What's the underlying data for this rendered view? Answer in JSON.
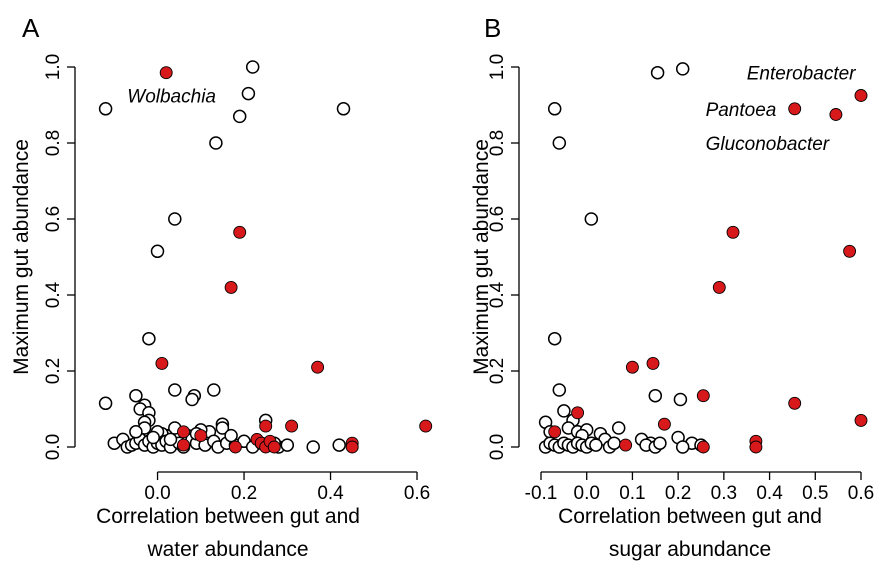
{
  "colors": {
    "highlight": "#d7191c",
    "open": "#ffffff",
    "stroke": "#000000"
  },
  "chart_data": [
    {
      "type": "scatter",
      "panel_label": "A",
      "xlabel": [
        "Correlation between gut and",
        "water abundance"
      ],
      "ylabel": "Maximum gut abundance",
      "xlim": [
        -0.14,
        0.63
      ],
      "ylim": [
        0,
        1.0
      ],
      "xticks": [
        0.0,
        0.2,
        0.4,
        0.6
      ],
      "xtick_labels": [
        "0.0",
        "0.2",
        "0.4",
        "0.6"
      ],
      "yticks": [
        0.0,
        0.2,
        0.4,
        0.6,
        0.8,
        1.0
      ],
      "ytick_labels": [
        "0.0",
        "0.2",
        "0.4",
        "0.6",
        "0.8",
        "1.0"
      ],
      "grid": false,
      "annotations": [
        {
          "text": "Wolbachia",
          "x": -0.07,
          "y": 0.925
        }
      ],
      "series": [
        {
          "style": "open",
          "points": [
            [
              -0.12,
              0.89
            ],
            [
              0.22,
              1.0
            ],
            [
              0.21,
              0.93
            ],
            [
              0.19,
              0.87
            ],
            [
              0.135,
              0.8
            ],
            [
              0.43,
              0.89
            ],
            [
              0.04,
              0.6
            ],
            [
              0.0,
              0.515
            ],
            [
              -0.02,
              0.285
            ],
            [
              0.04,
              0.15
            ],
            [
              -0.12,
              0.115
            ],
            [
              -0.05,
              0.135
            ],
            [
              -0.03,
              0.11
            ],
            [
              -0.04,
              0.1
            ],
            [
              -0.02,
              0.09
            ],
            [
              -0.02,
              0.07
            ],
            [
              -0.03,
              0.065
            ],
            [
              -0.03,
              0.05
            ],
            [
              0.13,
              0.15
            ],
            [
              0.085,
              0.135
            ],
            [
              0.08,
              0.125
            ],
            [
              0.15,
              0.06
            ],
            [
              0.15,
              0.05
            ],
            [
              0.25,
              0.07
            ],
            [
              0.12,
              0.04
            ],
            [
              0.1,
              0.045
            ],
            [
              0.07,
              0.03
            ],
            [
              0.04,
              0.05
            ],
            [
              0.02,
              0.03
            ],
            [
              0.01,
              0.035
            ],
            [
              -0.1,
              0.01
            ],
            [
              -0.08,
              0.02
            ],
            [
              -0.07,
              0.0
            ],
            [
              -0.06,
              0.005
            ],
            [
              -0.05,
              0.01
            ],
            [
              -0.04,
              0.02
            ],
            [
              -0.03,
              0.005
            ],
            [
              -0.02,
              0.015
            ],
            [
              -0.01,
              0.0
            ],
            [
              0.0,
              0.01
            ],
            [
              0.01,
              0.005
            ],
            [
              0.02,
              0.015
            ],
            [
              0.03,
              0.0
            ],
            [
              0.05,
              0.01
            ],
            [
              0.06,
              0.0
            ],
            [
              0.08,
              0.02
            ],
            [
              0.09,
              0.01
            ],
            [
              0.11,
              0.005
            ],
            [
              0.13,
              0.015
            ],
            [
              0.14,
              0.0
            ],
            [
              0.16,
              0.01
            ],
            [
              0.18,
              0.005
            ],
            [
              0.2,
              0.015
            ],
            [
              0.22,
              0.0
            ],
            [
              0.24,
              0.01
            ],
            [
              0.26,
              0.005
            ],
            [
              0.28,
              0.0
            ],
            [
              0.3,
              0.005
            ],
            [
              0.36,
              0.0
            ],
            [
              0.42,
              0.005
            ],
            [
              -0.05,
              0.04
            ],
            [
              0.0,
              0.04
            ],
            [
              -0.01,
              0.025
            ],
            [
              0.03,
              0.02
            ],
            [
              0.09,
              0.035
            ],
            [
              0.17,
              0.03
            ],
            [
              0.27,
              0.01
            ]
          ]
        },
        {
          "style": "filled",
          "points": [
            [
              0.02,
              0.985
            ],
            [
              0.19,
              0.565
            ],
            [
              0.17,
              0.42
            ],
            [
              0.01,
              0.22
            ],
            [
              0.37,
              0.21
            ],
            [
              0.62,
              0.055
            ],
            [
              0.31,
              0.055
            ],
            [
              0.25,
              0.055
            ],
            [
              0.06,
              0.04
            ],
            [
              0.1,
              0.03
            ],
            [
              0.45,
              0.01
            ],
            [
              0.45,
              0.0
            ],
            [
              0.23,
              0.02
            ],
            [
              0.24,
              0.01
            ],
            [
              0.25,
              0.0
            ],
            [
              0.26,
              0.015
            ],
            [
              0.27,
              0.0
            ],
            [
              0.18,
              0.0
            ],
            [
              0.06,
              0.005
            ]
          ]
        }
      ]
    },
    {
      "type": "scatter",
      "panel_label": "B",
      "xlabel": [
        "Correlation between gut and",
        "sugar abundance"
      ],
      "ylabel": "Maximum gut abundance",
      "xlim": [
        -0.1,
        0.6
      ],
      "ylim": [
        0,
        1.0
      ],
      "xticks": [
        -0.1,
        0.0,
        0.1,
        0.2,
        0.3,
        0.4,
        0.5,
        0.6
      ],
      "xtick_labels": [
        "-0.1",
        "0.0",
        "0.1",
        "0.2",
        "0.3",
        "0.4",
        "0.5",
        "0.6"
      ],
      "yticks": [
        0.0,
        0.2,
        0.4,
        0.6,
        0.8,
        1.0
      ],
      "ytick_labels": [
        "0.0",
        "0.2",
        "0.4",
        "0.6",
        "0.8",
        "1.0"
      ],
      "grid": false,
      "annotations": [
        {
          "text": "Enterobacter",
          "x": 0.35,
          "y": 0.985
        },
        {
          "text": "Pantoea",
          "x": 0.26,
          "y": 0.89
        },
        {
          "text": "Gluconobacter",
          "x": 0.26,
          "y": 0.8
        }
      ],
      "series": [
        {
          "style": "open",
          "points": [
            [
              0.155,
              0.985
            ],
            [
              0.21,
              0.995
            ],
            [
              -0.07,
              0.89
            ],
            [
              -0.06,
              0.8
            ],
            [
              0.01,
              0.6
            ],
            [
              -0.07,
              0.285
            ],
            [
              -0.06,
              0.15
            ],
            [
              0.15,
              0.135
            ],
            [
              0.205,
              0.125
            ],
            [
              -0.05,
              0.095
            ],
            [
              -0.03,
              0.07
            ],
            [
              -0.09,
              0.065
            ],
            [
              0.07,
              0.05
            ],
            [
              -0.04,
              0.05
            ],
            [
              -0.02,
              0.04
            ],
            [
              -0.08,
              0.04
            ],
            [
              0.0,
              0.045
            ],
            [
              -0.01,
              0.03
            ],
            [
              0.03,
              0.035
            ],
            [
              0.04,
              0.02
            ],
            [
              0.12,
              0.02
            ],
            [
              0.2,
              0.025
            ],
            [
              0.23,
              0.01
            ],
            [
              0.14,
              0.01
            ],
            [
              -0.09,
              0.0
            ],
            [
              -0.08,
              0.01
            ],
            [
              -0.07,
              0.005
            ],
            [
              -0.06,
              0.0
            ],
            [
              -0.05,
              0.01
            ],
            [
              -0.04,
              0.005
            ],
            [
              -0.03,
              0.0
            ],
            [
              -0.02,
              0.01
            ],
            [
              -0.01,
              0.005
            ],
            [
              0.0,
              0.0
            ],
            [
              0.01,
              0.01
            ],
            [
              0.02,
              0.005
            ],
            [
              0.05,
              0.0
            ],
            [
              0.06,
              0.01
            ],
            [
              0.13,
              0.005
            ],
            [
              0.15,
              0.0
            ],
            [
              0.16,
              0.01
            ],
            [
              0.21,
              0.0
            ],
            [
              0.25,
              0.005
            ]
          ]
        },
        {
          "style": "filled",
          "points": [
            [
              0.455,
              0.89
            ],
            [
              0.545,
              0.875
            ],
            [
              0.6,
              0.925
            ],
            [
              0.32,
              0.565
            ],
            [
              0.575,
              0.515
            ],
            [
              0.29,
              0.42
            ],
            [
              0.145,
              0.22
            ],
            [
              0.1,
              0.21
            ],
            [
              0.255,
              0.135
            ],
            [
              0.455,
              0.115
            ],
            [
              -0.02,
              0.09
            ],
            [
              0.6,
              0.07
            ],
            [
              0.17,
              0.06
            ],
            [
              -0.07,
              0.04
            ],
            [
              0.085,
              0.005
            ],
            [
              0.255,
              0.0
            ],
            [
              0.37,
              0.015
            ],
            [
              0.37,
              0.0
            ]
          ]
        }
      ]
    }
  ]
}
